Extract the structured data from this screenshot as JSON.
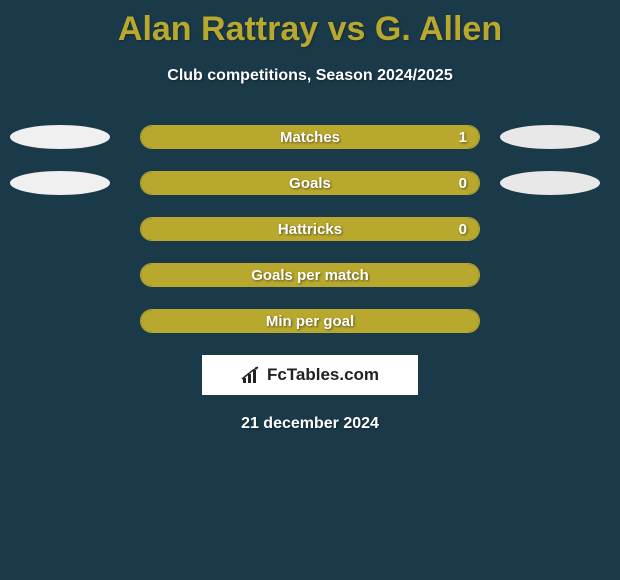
{
  "title": "Alan Rattray vs G. Allen",
  "subtitle": "Club competitions, Season 2024/2025",
  "date": "21 december 2024",
  "logo_text": "FcTables.com",
  "colors": {
    "background": "#1a3a4a",
    "accent": "#b8a82e",
    "text_white": "#ffffff",
    "ellipse_white": "#f0f0f0",
    "ellipse_right": "#e8e8e8"
  },
  "rows": [
    {
      "label": "Matches",
      "value": "1",
      "fill_left_pct": 0,
      "fill_width_pct": 100,
      "fill_color": "#b8a82e",
      "show_value": true,
      "left_ellipse_color": "#f0f0f0",
      "right_ellipse_color": "#e8e8e8",
      "show_left_ellipse": true,
      "show_right_ellipse": true
    },
    {
      "label": "Goals",
      "value": "0",
      "fill_left_pct": 0,
      "fill_width_pct": 100,
      "fill_color": "#b8a82e",
      "show_value": true,
      "left_ellipse_color": "#f0f0f0",
      "right_ellipse_color": "#e8e8e8",
      "show_left_ellipse": true,
      "show_right_ellipse": true
    },
    {
      "label": "Hattricks",
      "value": "0",
      "fill_left_pct": 0,
      "fill_width_pct": 100,
      "fill_color": "#b8a82e",
      "show_value": true,
      "left_ellipse_color": "",
      "right_ellipse_color": "",
      "show_left_ellipse": false,
      "show_right_ellipse": false
    },
    {
      "label": "Goals per match",
      "value": "",
      "fill_left_pct": 0,
      "fill_width_pct": 100,
      "fill_color": "#b8a82e",
      "show_value": false,
      "left_ellipse_color": "",
      "right_ellipse_color": "",
      "show_left_ellipse": false,
      "show_right_ellipse": false
    },
    {
      "label": "Min per goal",
      "value": "",
      "fill_left_pct": 0,
      "fill_width_pct": 100,
      "fill_color": "#b8a82e",
      "show_value": false,
      "left_ellipse_color": "",
      "right_ellipse_color": "",
      "show_left_ellipse": false,
      "show_right_ellipse": false
    }
  ]
}
